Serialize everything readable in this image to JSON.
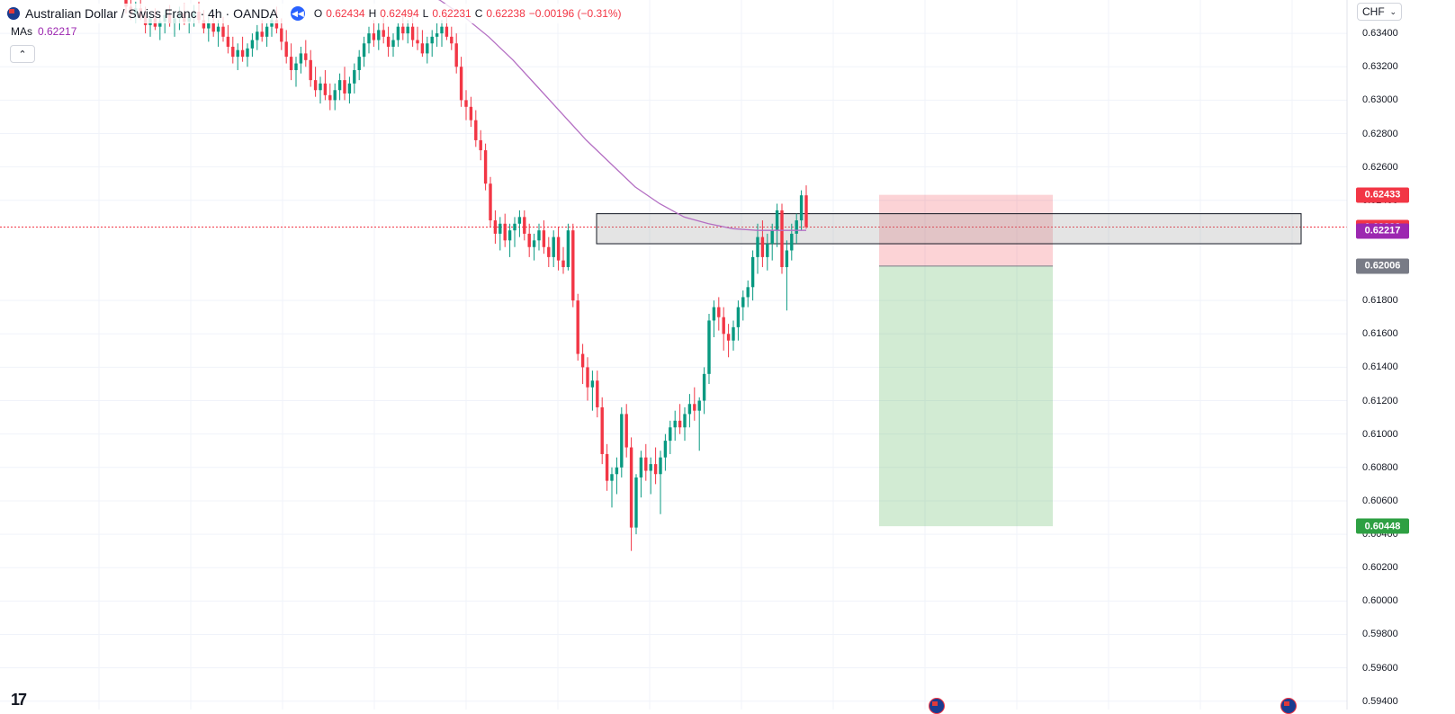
{
  "header": {
    "symbol_title": "Australian Dollar / Swiss Franc · 4h · OANDA",
    "open_label": "O",
    "open": "0.62434",
    "high_label": "H",
    "high": "0.62494",
    "low_label": "L",
    "low": "0.62231",
    "close_label": "C",
    "close": "0.62238",
    "change": "−0.00196 (−0.31%)"
  },
  "indicator": {
    "name": "MAs",
    "value": "0.62217",
    "color": "#9c27b0"
  },
  "collapse_glyph": "⌃",
  "currency": {
    "selected": "CHF"
  },
  "colors": {
    "up": "#089981",
    "down": "#f23645",
    "ma": "#b46fc3",
    "stop_zone": "#f23645",
    "target_zone": "#4caf50"
  },
  "price_axis": {
    "ticks": [
      "0.63400",
      "0.63200",
      "0.63000",
      "0.62800",
      "0.62600",
      "0.62400",
      "0.61800",
      "0.61600",
      "0.61400",
      "0.61200",
      "0.61000",
      "0.60800",
      "0.60600",
      "0.60400",
      "0.60200",
      "0.60000",
      "0.59800",
      "0.59600",
      "0.59400"
    ],
    "tags": [
      {
        "name": "stop-price-tag",
        "value": "0.62433",
        "color": "#f23645"
      },
      {
        "name": "last-price-tag",
        "value": "0.62238",
        "color": "#f23645"
      },
      {
        "name": "ma-price-tag",
        "value": "0.62217",
        "color": "#9c27b0"
      },
      {
        "name": "entry-price-tag",
        "value": "0.62006",
        "color": "#787b86"
      },
      {
        "name": "target-price-tag",
        "value": "0.60448",
        "color": "#2ea043"
      }
    ]
  },
  "drawings": {
    "zone": {
      "top": 0.6232,
      "bottom": 0.6214
    },
    "position": {
      "type": "short",
      "entry": 0.62006,
      "stop": 0.62433,
      "target": 0.60448
    }
  },
  "chart_data": {
    "type": "candlestick",
    "symbol": "AUDCHF",
    "timeframe": "4h",
    "ylim": [
      0.5935,
      0.636
    ],
    "candles": [
      [
        0.636,
        0.6365,
        0.6352,
        0.6356
      ],
      [
        0.6356,
        0.6362,
        0.6348,
        0.6352
      ],
      [
        0.6352,
        0.6359,
        0.6346,
        0.6355
      ],
      [
        0.6355,
        0.6361,
        0.6348,
        0.635
      ],
      [
        0.635,
        0.6356,
        0.634,
        0.6345
      ],
      [
        0.6345,
        0.6352,
        0.6338,
        0.6349
      ],
      [
        0.6349,
        0.6355,
        0.6342,
        0.6344
      ],
      [
        0.6344,
        0.635,
        0.6336,
        0.6347
      ],
      [
        0.6347,
        0.6354,
        0.634,
        0.6351
      ],
      [
        0.6351,
        0.6357,
        0.6344,
        0.6346
      ],
      [
        0.6346,
        0.6353,
        0.6338,
        0.6349
      ],
      [
        0.6349,
        0.6356,
        0.6342,
        0.6352
      ],
      [
        0.6352,
        0.6358,
        0.6345,
        0.6347
      ],
      [
        0.6347,
        0.6353,
        0.634,
        0.635
      ],
      [
        0.635,
        0.6357,
        0.6344,
        0.6353
      ],
      [
        0.6353,
        0.6359,
        0.6346,
        0.6348
      ],
      [
        0.6348,
        0.6354,
        0.634,
        0.6343
      ],
      [
        0.6343,
        0.635,
        0.6335,
        0.6346
      ],
      [
        0.6346,
        0.6352,
        0.6338,
        0.6341
      ],
      [
        0.6341,
        0.6348,
        0.6332,
        0.6344
      ],
      [
        0.6344,
        0.635,
        0.6335,
        0.6338
      ],
      [
        0.6338,
        0.6345,
        0.6328,
        0.6332
      ],
      [
        0.6332,
        0.6338,
        0.6322,
        0.6326
      ],
      [
        0.6326,
        0.6334,
        0.6318,
        0.633
      ],
      [
        0.633,
        0.6338,
        0.6323,
        0.6326
      ],
      [
        0.6326,
        0.6334,
        0.632,
        0.6331
      ],
      [
        0.6331,
        0.634,
        0.6326,
        0.6336
      ],
      [
        0.6336,
        0.6345,
        0.633,
        0.6341
      ],
      [
        0.6341,
        0.6348,
        0.6335,
        0.6338
      ],
      [
        0.6338,
        0.6346,
        0.6332,
        0.6344
      ],
      [
        0.6344,
        0.6352,
        0.6338,
        0.6348
      ],
      [
        0.6348,
        0.6356,
        0.634,
        0.6343
      ],
      [
        0.6343,
        0.6349,
        0.633,
        0.6335
      ],
      [
        0.6335,
        0.6342,
        0.6322,
        0.6326
      ],
      [
        0.6326,
        0.6334,
        0.6312,
        0.6318
      ],
      [
        0.6318,
        0.6326,
        0.6308,
        0.6322
      ],
      [
        0.6322,
        0.6332,
        0.6316,
        0.6328
      ],
      [
        0.6328,
        0.6336,
        0.632,
        0.6324
      ],
      [
        0.6324,
        0.633,
        0.6308,
        0.6312
      ],
      [
        0.6312,
        0.632,
        0.6302,
        0.6306
      ],
      [
        0.6306,
        0.6314,
        0.6298,
        0.631
      ],
      [
        0.631,
        0.6318,
        0.63,
        0.6303
      ],
      [
        0.6303,
        0.631,
        0.6294,
        0.63
      ],
      [
        0.63,
        0.631,
        0.6294,
        0.6306
      ],
      [
        0.6306,
        0.6316,
        0.63,
        0.6312
      ],
      [
        0.6312,
        0.632,
        0.63,
        0.6304
      ],
      [
        0.6304,
        0.6314,
        0.6298,
        0.631
      ],
      [
        0.631,
        0.6322,
        0.6304,
        0.6318
      ],
      [
        0.6318,
        0.633,
        0.6312,
        0.6326
      ],
      [
        0.6326,
        0.6338,
        0.632,
        0.6334
      ],
      [
        0.6334,
        0.6344,
        0.6328,
        0.634
      ],
      [
        0.634,
        0.6348,
        0.6332,
        0.6336
      ],
      [
        0.6336,
        0.6346,
        0.633,
        0.6342
      ],
      [
        0.6342,
        0.635,
        0.6334,
        0.6338
      ],
      [
        0.6338,
        0.6344,
        0.6326,
        0.6332
      ],
      [
        0.6332,
        0.634,
        0.6326,
        0.6336
      ],
      [
        0.6336,
        0.6346,
        0.6332,
        0.6344
      ],
      [
        0.6344,
        0.6352,
        0.6336,
        0.634
      ],
      [
        0.634,
        0.6348,
        0.6334,
        0.6344
      ],
      [
        0.6344,
        0.635,
        0.6332,
        0.6336
      ],
      [
        0.6336,
        0.6344,
        0.633,
        0.6334
      ],
      [
        0.6334,
        0.6342,
        0.6326,
        0.6328
      ],
      [
        0.6328,
        0.6338,
        0.6322,
        0.6334
      ],
      [
        0.6334,
        0.6342,
        0.6326,
        0.6338
      ],
      [
        0.6338,
        0.6346,
        0.6332,
        0.634
      ],
      [
        0.634,
        0.6348,
        0.6332,
        0.6344
      ],
      [
        0.6344,
        0.635,
        0.6336,
        0.6338
      ],
      [
        0.6338,
        0.6344,
        0.633,
        0.6334
      ],
      [
        0.6334,
        0.634,
        0.6316,
        0.632
      ],
      [
        0.632,
        0.6326,
        0.6296,
        0.63
      ],
      [
        0.63,
        0.6306,
        0.6288,
        0.6296
      ],
      [
        0.6296,
        0.6302,
        0.6284,
        0.6288
      ],
      [
        0.6288,
        0.6294,
        0.6272,
        0.6276
      ],
      [
        0.6276,
        0.6282,
        0.6264,
        0.627
      ],
      [
        0.627,
        0.6274,
        0.6246,
        0.625
      ],
      [
        0.625,
        0.6254,
        0.6224,
        0.6228
      ],
      [
        0.6228,
        0.6234,
        0.6214,
        0.622
      ],
      [
        0.622,
        0.623,
        0.621,
        0.6226
      ],
      [
        0.6226,
        0.6232,
        0.6212,
        0.6216
      ],
      [
        0.6216,
        0.6226,
        0.6206,
        0.6222
      ],
      [
        0.6222,
        0.623,
        0.6212,
        0.6226
      ],
      [
        0.6226,
        0.6234,
        0.6218,
        0.623
      ],
      [
        0.623,
        0.6234,
        0.6216,
        0.622
      ],
      [
        0.622,
        0.6226,
        0.6206,
        0.6212
      ],
      [
        0.6212,
        0.622,
        0.6204,
        0.6216
      ],
      [
        0.6216,
        0.6226,
        0.621,
        0.6222
      ],
      [
        0.6222,
        0.6228,
        0.6208,
        0.6212
      ],
      [
        0.6212,
        0.6218,
        0.62,
        0.6206
      ],
      [
        0.6206,
        0.6222,
        0.62,
        0.6218
      ],
      [
        0.6218,
        0.6224,
        0.6198,
        0.6204
      ],
      [
        0.6204,
        0.6212,
        0.6196,
        0.62
      ],
      [
        0.62,
        0.6226,
        0.6198,
        0.6222
      ],
      [
        0.6222,
        0.6226,
        0.6176,
        0.618
      ],
      [
        0.618,
        0.6184,
        0.6144,
        0.6148
      ],
      [
        0.6148,
        0.6154,
        0.613,
        0.614
      ],
      [
        0.614,
        0.6146,
        0.612,
        0.6128
      ],
      [
        0.6128,
        0.6138,
        0.6114,
        0.6132
      ],
      [
        0.6132,
        0.6138,
        0.611,
        0.6116
      ],
      [
        0.6116,
        0.6122,
        0.6082,
        0.6088
      ],
      [
        0.6088,
        0.6094,
        0.6066,
        0.6072
      ],
      [
        0.6072,
        0.608,
        0.6056,
        0.6076
      ],
      [
        0.6076,
        0.6086,
        0.6064,
        0.608
      ],
      [
        0.608,
        0.6116,
        0.6074,
        0.6112
      ],
      [
        0.6112,
        0.6118,
        0.6086,
        0.6092
      ],
      [
        0.6092,
        0.6098,
        0.603,
        0.6044
      ],
      [
        0.6044,
        0.6076,
        0.604,
        0.6074
      ],
      [
        0.6074,
        0.609,
        0.6062,
        0.6086
      ],
      [
        0.6086,
        0.6094,
        0.6072,
        0.6078
      ],
      [
        0.6078,
        0.6086,
        0.6064,
        0.6082
      ],
      [
        0.6082,
        0.6092,
        0.607,
        0.6076
      ],
      [
        0.6076,
        0.609,
        0.6052,
        0.6086
      ],
      [
        0.6086,
        0.61,
        0.6078,
        0.6096
      ],
      [
        0.6096,
        0.6108,
        0.6088,
        0.6104
      ],
      [
        0.6104,
        0.6114,
        0.6096,
        0.6108
      ],
      [
        0.6108,
        0.6118,
        0.61,
        0.6104
      ],
      [
        0.6104,
        0.6116,
        0.6096,
        0.6112
      ],
      [
        0.6112,
        0.6124,
        0.6104,
        0.6118
      ],
      [
        0.6118,
        0.6128,
        0.6108,
        0.6114
      ],
      [
        0.6114,
        0.6122,
        0.609,
        0.612
      ],
      [
        0.612,
        0.614,
        0.6112,
        0.6136
      ],
      [
        0.6136,
        0.6172,
        0.613,
        0.6168
      ],
      [
        0.6168,
        0.618,
        0.6158,
        0.6176
      ],
      [
        0.6176,
        0.6182,
        0.6162,
        0.617
      ],
      [
        0.617,
        0.6176,
        0.615,
        0.616
      ],
      [
        0.616,
        0.6166,
        0.6146,
        0.6156
      ],
      [
        0.6156,
        0.6168,
        0.615,
        0.6164
      ],
      [
        0.6164,
        0.618,
        0.6156,
        0.6176
      ],
      [
        0.6176,
        0.6186,
        0.6168,
        0.6182
      ],
      [
        0.6182,
        0.6192,
        0.6176,
        0.6188
      ],
      [
        0.6188,
        0.621,
        0.618,
        0.6206
      ],
      [
        0.6206,
        0.6226,
        0.6196,
        0.6218
      ],
      [
        0.6218,
        0.6228,
        0.62,
        0.6206
      ],
      [
        0.6206,
        0.622,
        0.6198,
        0.6214
      ],
      [
        0.6214,
        0.6226,
        0.6204,
        0.6222
      ],
      [
        0.6222,
        0.6238,
        0.6212,
        0.6234
      ],
      [
        0.6234,
        0.6238,
        0.6196,
        0.62
      ],
      [
        0.62,
        0.6216,
        0.6174,
        0.621
      ],
      [
        0.621,
        0.6226,
        0.6204,
        0.622
      ],
      [
        0.622,
        0.6232,
        0.6214,
        0.6228
      ],
      [
        0.6228,
        0.6246,
        0.6222,
        0.6243
      ],
      [
        0.6243,
        0.6249,
        0.6223,
        0.6224
      ]
    ],
    "ma": [
      0.6374,
      0.6372,
      0.637,
      0.6366,
      0.636,
      0.635,
      0.6338,
      0.6324,
      0.6308,
      0.6292,
      0.6276,
      0.6262,
      0.6248,
      0.6238,
      0.623,
      0.6226,
      0.6223,
      0.6222,
      0.6222,
      0.6222
    ]
  }
}
